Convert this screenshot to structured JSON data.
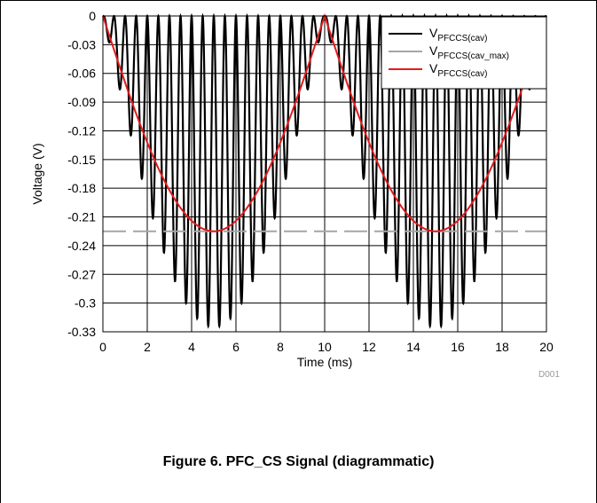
{
  "figure": {
    "caption": "Figure 6. PFC_CS Signal (diagrammatic)",
    "code": "D001"
  },
  "chart_data": {
    "type": "line",
    "xlabel": "Time (ms)",
    "ylabel": "Voltage (V)",
    "xlim": [
      0,
      20
    ],
    "ylim": [
      -0.33,
      0
    ],
    "x_ticks": [
      0,
      2,
      4,
      6,
      8,
      10,
      12,
      14,
      16,
      18,
      20
    ],
    "x_tick_labels": [
      "0",
      "2",
      "4",
      "6",
      "8",
      "10",
      "12",
      "14",
      "16",
      "18",
      "20"
    ],
    "y_ticks": [
      0,
      -0.03,
      -0.06,
      -0.09,
      -0.12,
      -0.15,
      -0.18,
      -0.21,
      -0.24,
      -0.27,
      -0.3,
      -0.33
    ],
    "y_tick_labels": [
      "0",
      "-0.03",
      "-0.06",
      "-0.09",
      "-0.12",
      "-0.15",
      "-0.18",
      "-0.21",
      "-0.24",
      "-0.27",
      "-0.3",
      "-0.33"
    ],
    "grid": true,
    "legend_position": "top-right",
    "series": [
      {
        "name": "VPFCCS(cav)",
        "legend_main": "V",
        "legend_sub": "PFCCS(cav)",
        "color": "#000000",
        "style": "solid",
        "kind": "ripple",
        "envelope_peak": -0.325,
        "ripple_cycles_per_half": 20,
        "period_ms": 10
      },
      {
        "name": "VPFCCS(cav_max)",
        "legend_main": "V",
        "legend_sub": "PFCCS(cav_max)",
        "color": "#a6a6a6",
        "style": "dashed",
        "kind": "constant",
        "value": -0.225
      },
      {
        "name": "VPFCCS(cav)",
        "legend_main": "V",
        "legend_sub": "PFCCS(cav)",
        "color": "#e31a1c",
        "style": "solid",
        "kind": "rectified-sine",
        "x": [
          0,
          1,
          2,
          3,
          4,
          5,
          6,
          7,
          8,
          9,
          10,
          11,
          12,
          13,
          14,
          15,
          16,
          17,
          18,
          19,
          20
        ],
        "y": [
          0,
          -0.0695,
          -0.1323,
          -0.182,
          -0.214,
          -0.225,
          -0.214,
          -0.182,
          -0.1323,
          -0.0695,
          0,
          -0.0695,
          -0.1323,
          -0.182,
          -0.214,
          -0.225,
          -0.214,
          -0.182,
          -0.1323,
          -0.0695,
          0
        ]
      }
    ]
  }
}
